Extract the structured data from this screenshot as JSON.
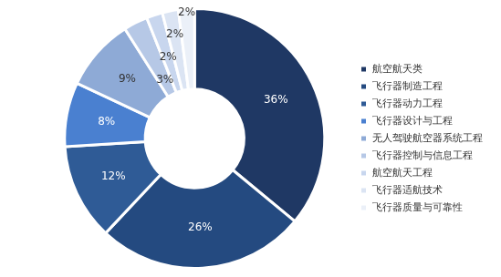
{
  "chart_data": {
    "type": "doughnut",
    "categories": [
      "航空航天类",
      "飞行器制造工程",
      "飞行器动力工程",
      "飞行器设计与工程",
      "无人驾驶航空器系统工程",
      "飞行器控制与信息工程",
      "航空航天工程",
      "飞行器适航技术",
      "飞行器质量与可靠性"
    ],
    "values": [
      36,
      26,
      12,
      8,
      9,
      3,
      2,
      2,
      2
    ],
    "value_labels": [
      "36%",
      "26%",
      "12%",
      "8%",
      "9%",
      "3%",
      "2%",
      "2%",
      "2%"
    ],
    "colors": [
      "#1f3864",
      "#244a80",
      "#2f5b96",
      "#4a80d0",
      "#8eaad6",
      "#b6c8e6",
      "#c8d6ee",
      "#dbe4f3",
      "#ebf0f8"
    ],
    "data_labels": true,
    "legend": "right"
  }
}
